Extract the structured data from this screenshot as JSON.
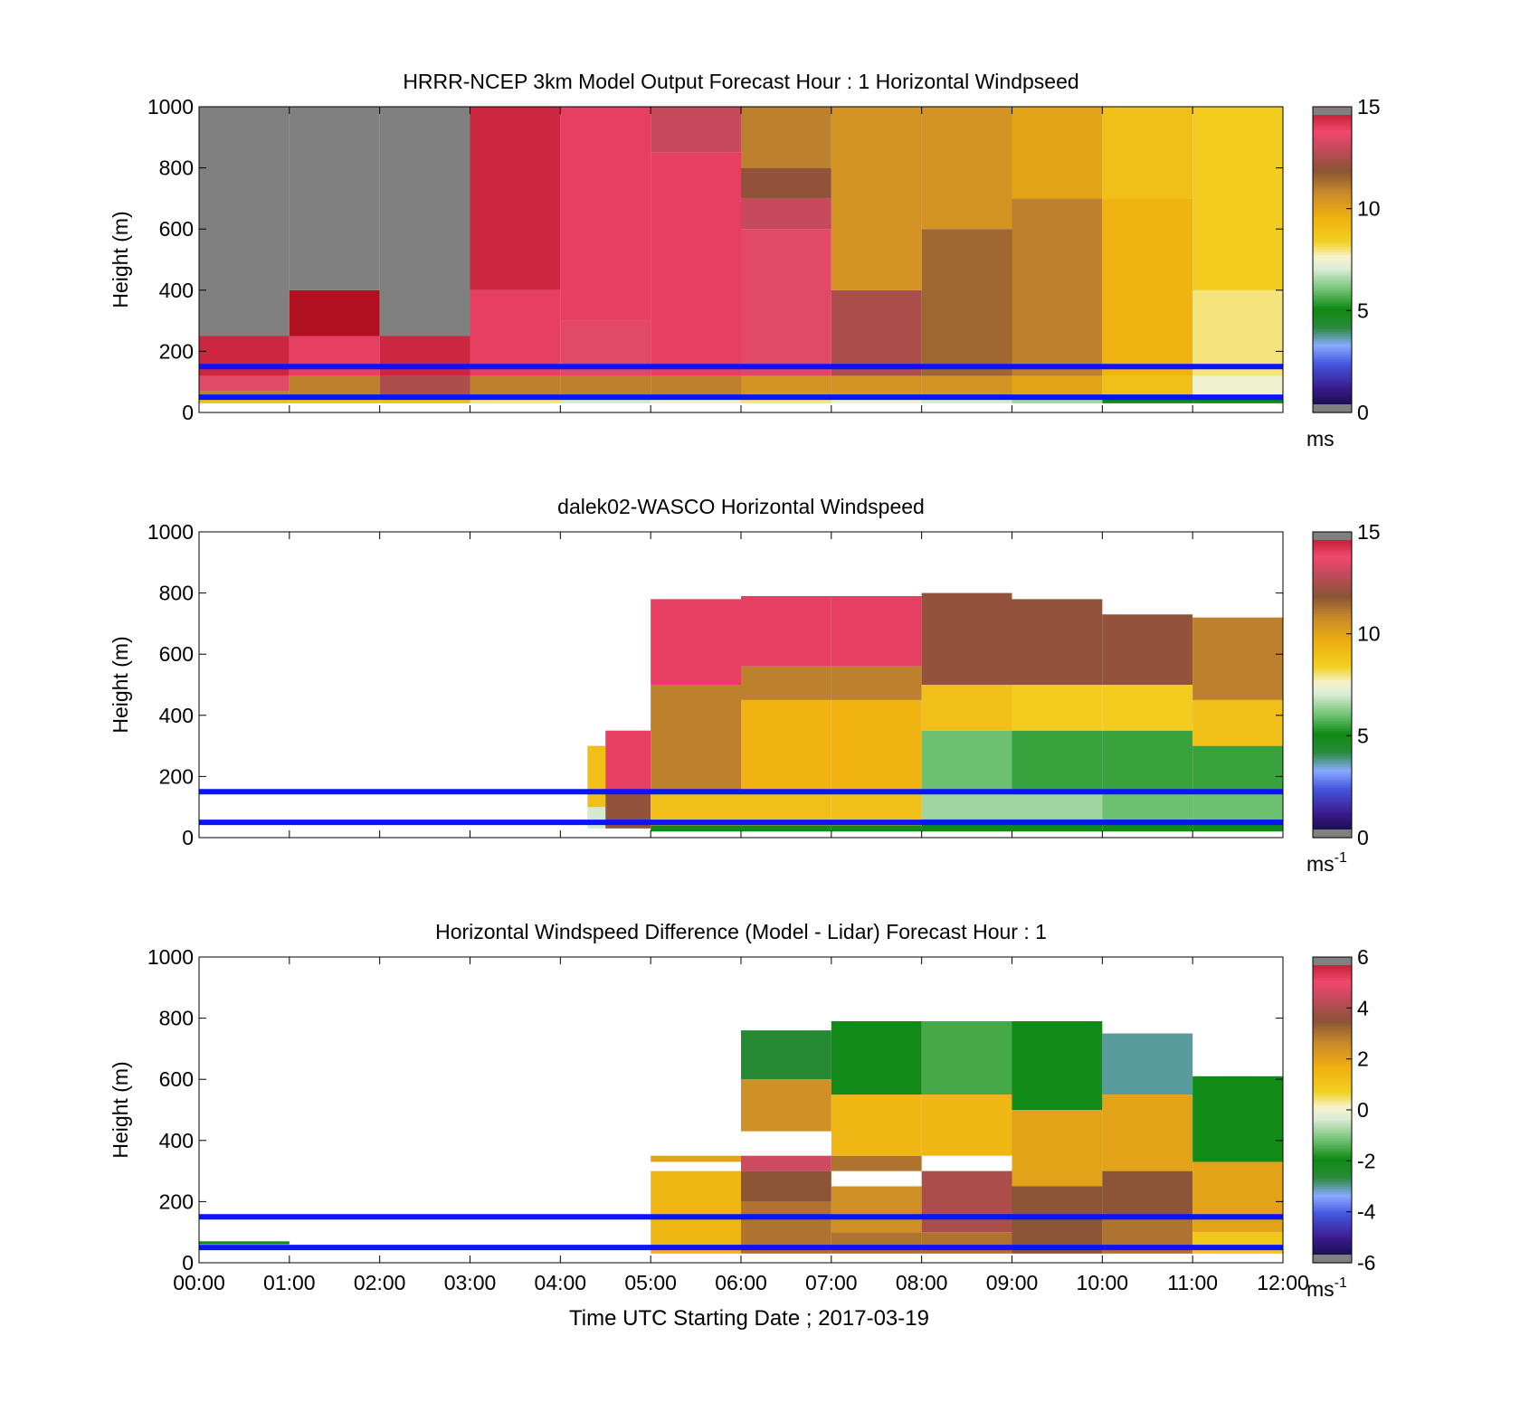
{
  "figure": {
    "xlabel": "Time UTC  Starting Date ; 2017-03-19",
    "time_ticks": [
      "00:00",
      "01:00",
      "02:00",
      "03:00",
      "04:00",
      "05:00",
      "06:00",
      "07:00",
      "08:00",
      "09:00",
      "10:00",
      "11:00",
      "12:00"
    ]
  },
  "chart_data": [
    {
      "type": "heatmap",
      "title": "HRRR-NCEP 3km Model Output   Forecast Hour : 1 Horizontal Windpseed",
      "ylabel": "Height (m)",
      "xlim": [
        0,
        12
      ],
      "ylim": [
        0,
        1000
      ],
      "y_ticks": [
        0,
        200,
        400,
        600,
        800,
        1000
      ],
      "colorbar": {
        "range": [
          0,
          15
        ],
        "ticks": [
          0,
          5,
          10,
          15
        ],
        "unit": "ms",
        "unit_sup": ""
      },
      "reference_lines_m": [
        150,
        50
      ],
      "columns": [
        {
          "t0": 0,
          "t1": 1,
          "layers": [
            [
              30,
              50,
              9
            ],
            [
              50,
              70,
              11
            ],
            [
              70,
              120,
              13.5
            ],
            [
              120,
              250,
              14.5
            ],
            [
              250,
              1000,
              "missing"
            ]
          ]
        },
        {
          "t0": 1,
          "t1": 2,
          "layers": [
            [
              30,
              50,
              9
            ],
            [
              50,
              120,
              11
            ],
            [
              120,
              250,
              14
            ],
            [
              250,
              400,
              15
            ],
            [
              400,
              1000,
              "missing"
            ]
          ]
        },
        {
          "t0": 2,
          "t1": 3,
          "layers": [
            [
              30,
              50,
              9
            ],
            [
              50,
              120,
              12.5
            ],
            [
              120,
              250,
              14.5
            ],
            [
              250,
              1000,
              "missing"
            ]
          ]
        },
        {
          "t0": 3,
          "t1": 4,
          "layers": [
            [
              30,
              50,
              8
            ],
            [
              50,
              120,
              11
            ],
            [
              120,
              400,
              14
            ],
            [
              400,
              1000,
              14.5
            ]
          ]
        },
        {
          "t0": 4,
          "t1": 5,
          "layers": [
            [
              30,
              50,
              7
            ],
            [
              50,
              120,
              11
            ],
            [
              120,
              300,
              13.5
            ],
            [
              300,
              1000,
              14
            ]
          ]
        },
        {
          "t0": 5,
          "t1": 6,
          "layers": [
            [
              30,
              50,
              7.5
            ],
            [
              50,
              120,
              11
            ],
            [
              120,
              850,
              14
            ],
            [
              850,
              1000,
              13
            ]
          ]
        },
        {
          "t0": 6,
          "t1": 7,
          "layers": [
            [
              30,
              50,
              8
            ],
            [
              50,
              120,
              10.5
            ],
            [
              120,
              600,
              13.5
            ],
            [
              600,
              700,
              13
            ],
            [
              700,
              800,
              12
            ],
            [
              800,
              1000,
              11
            ]
          ]
        },
        {
          "t0": 7,
          "t1": 8,
          "layers": [
            [
              30,
              50,
              7.5
            ],
            [
              50,
              120,
              10.5
            ],
            [
              120,
              400,
              12.5
            ],
            [
              400,
              1000,
              10.5
            ]
          ]
        },
        {
          "t0": 8,
          "t1": 9,
          "layers": [
            [
              30,
              50,
              7
            ],
            [
              50,
              120,
              10.5
            ],
            [
              120,
              600,
              11.5
            ],
            [
              600,
              1000,
              10.5
            ]
          ]
        },
        {
          "t0": 9,
          "t1": 10,
          "layers": [
            [
              30,
              50,
              6.5
            ],
            [
              50,
              120,
              10
            ],
            [
              120,
              700,
              11
            ],
            [
              700,
              1000,
              10
            ]
          ]
        },
        {
          "t0": 10,
          "t1": 11,
          "layers": [
            [
              30,
              50,
              5
            ],
            [
              50,
              120,
              9
            ],
            [
              120,
              700,
              9.5
            ],
            [
              700,
              1000,
              9
            ]
          ]
        },
        {
          "t0": 11,
          "t1": 12,
          "layers": [
            [
              30,
              50,
              5
            ],
            [
              50,
              120,
              7.5
            ],
            [
              120,
              400,
              8
            ],
            [
              400,
              1000,
              8.5
            ]
          ]
        }
      ]
    },
    {
      "type": "heatmap",
      "title": "dalek02-WASCO  Horizontal Windspeed",
      "ylabel": "Height (m)",
      "xlim": [
        0,
        12
      ],
      "ylim": [
        0,
        1000
      ],
      "y_ticks": [
        0,
        200,
        400,
        600,
        800,
        1000
      ],
      "colorbar": {
        "range": [
          0,
          15
        ],
        "ticks": [
          0,
          5,
          10,
          15
        ],
        "unit": "ms",
        "unit_sup": "-1"
      },
      "reference_lines_m": [
        150,
        50
      ],
      "columns": [
        {
          "t0": 4.3,
          "t1": 4.5,
          "layers": [
            [
              30,
              100,
              7
            ],
            [
              100,
              300,
              9
            ]
          ]
        },
        {
          "t0": 4.5,
          "t1": 5,
          "layers": [
            [
              30,
              150,
              12
            ],
            [
              150,
              350,
              14
            ]
          ]
        },
        {
          "t0": 5,
          "t1": 6,
          "layers": [
            [
              20,
              40,
              5
            ],
            [
              40,
              150,
              9
            ],
            [
              150,
              500,
              11
            ],
            [
              500,
              780,
              14
            ]
          ]
        },
        {
          "t0": 6,
          "t1": 7,
          "layers": [
            [
              20,
              40,
              5
            ],
            [
              40,
              150,
              9
            ],
            [
              150,
              450,
              9.5
            ],
            [
              450,
              560,
              11
            ],
            [
              560,
              790,
              14
            ]
          ]
        },
        {
          "t0": 7,
          "t1": 8,
          "layers": [
            [
              20,
              40,
              5
            ],
            [
              40,
              150,
              9
            ],
            [
              150,
              450,
              9.5
            ],
            [
              450,
              560,
              11
            ],
            [
              560,
              790,
              14
            ]
          ]
        },
        {
          "t0": 8,
          "t1": 9,
          "layers": [
            [
              20,
              60,
              5
            ],
            [
              60,
              150,
              6.5
            ],
            [
              150,
              350,
              6
            ],
            [
              350,
              500,
              9
            ],
            [
              500,
              800,
              12
            ]
          ]
        },
        {
          "t0": 9,
          "t1": 10,
          "layers": [
            [
              20,
              60,
              5
            ],
            [
              60,
              150,
              6.5
            ],
            [
              150,
              350,
              5.5
            ],
            [
              350,
              500,
              8.5
            ],
            [
              500,
              780,
              12
            ]
          ]
        },
        {
          "t0": 10,
          "t1": 11,
          "layers": [
            [
              20,
              60,
              5
            ],
            [
              60,
              150,
              6
            ],
            [
              150,
              350,
              5.5
            ],
            [
              350,
              500,
              8.5
            ],
            [
              500,
              730,
              12
            ]
          ]
        },
        {
          "t0": 11,
          "t1": 12,
          "layers": [
            [
              20,
              60,
              5
            ],
            [
              60,
              150,
              6
            ],
            [
              150,
              300,
              5.5
            ],
            [
              300,
              450,
              9
            ],
            [
              450,
              720,
              11
            ]
          ]
        }
      ]
    },
    {
      "type": "heatmap",
      "title": "Horizontal Windspeed Difference (Model - Lidar) Forecast Hour : 1",
      "ylabel": "Height (m)",
      "xlim": [
        0,
        12
      ],
      "ylim": [
        0,
        1000
      ],
      "y_ticks": [
        0,
        200,
        400,
        600,
        800,
        1000
      ],
      "colorbar": {
        "range": [
          -6,
          6
        ],
        "ticks": [
          -6,
          -4,
          -2,
          0,
          2,
          4,
          6
        ],
        "unit": "ms",
        "unit_sup": "-1"
      },
      "reference_lines_m": [
        150,
        50
      ],
      "columns": [
        {
          "t0": 0,
          "t1": 1,
          "layers": [
            [
              60,
              70,
              -2
            ]
          ]
        },
        {
          "t0": 5,
          "t1": 6,
          "layers": [
            [
              30,
              300,
              1.5
            ],
            [
              330,
              350,
              2
            ]
          ]
        },
        {
          "t0": 6,
          "t1": 7,
          "layers": [
            [
              30,
              200,
              3
            ],
            [
              200,
              300,
              3.5
            ],
            [
              300,
              350,
              4.5
            ],
            [
              430,
              600,
              2.5
            ],
            [
              600,
              760,
              -2.5
            ]
          ]
        },
        {
          "t0": 7,
          "t1": 8,
          "layers": [
            [
              30,
              100,
              3
            ],
            [
              100,
              250,
              2.5
            ],
            [
              300,
              350,
              3
            ],
            [
              350,
              550,
              1.5
            ],
            [
              550,
              790,
              -2
            ]
          ]
        },
        {
          "t0": 8,
          "t1": 9,
          "layers": [
            [
              30,
              100,
              3
            ],
            [
              100,
              300,
              4
            ],
            [
              350,
              550,
              1.5
            ],
            [
              550,
              790,
              -1.5
            ]
          ]
        },
        {
          "t0": 9,
          "t1": 10,
          "layers": [
            [
              30,
              250,
              3.5
            ],
            [
              250,
              500,
              2
            ],
            [
              500,
              790,
              -2
            ]
          ]
        },
        {
          "t0": 10,
          "t1": 11,
          "layers": [
            [
              30,
              150,
              3
            ],
            [
              150,
              300,
              3.5
            ],
            [
              300,
              550,
              2
            ],
            [
              550,
              750,
              -3
            ]
          ]
        },
        {
          "t0": 11,
          "t1": 12,
          "layers": [
            [
              30,
              100,
              1
            ],
            [
              100,
              330,
              2
            ],
            [
              330,
              610,
              -2
            ]
          ]
        }
      ]
    }
  ]
}
